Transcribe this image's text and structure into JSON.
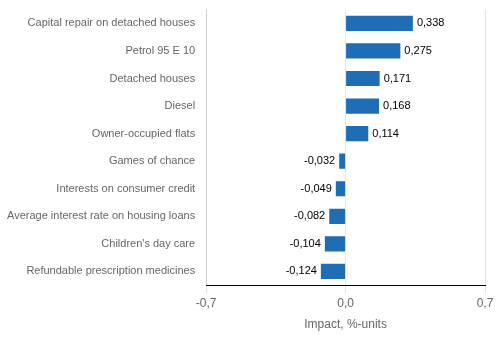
{
  "chart_data": {
    "type": "bar",
    "orientation": "horizontal",
    "categories": [
      "Refundable prescription medicines",
      "Children's day care",
      "Average interest rate on housing loans",
      "Interests on consumer credit",
      "Games of chance",
      "Owner-occupied flats",
      "Diesel",
      "Detached houses",
      "Petrol 95 E 10",
      "Capital repair on detached houses"
    ],
    "values": [
      -0.124,
      -0.104,
      -0.082,
      -0.049,
      -0.032,
      0.114,
      0.168,
      0.171,
      0.275,
      0.338
    ],
    "value_labels": [
      "-0,124",
      "-0,104",
      "-0,082",
      "-0,049",
      "-0,032",
      "0,114",
      "0,168",
      "0,171",
      "0,275",
      "0,338"
    ],
    "data_labels": true,
    "color": "#1f6eb5",
    "xlabel": "Impact, %-units",
    "xlim": [
      -0.7,
      0.7
    ],
    "xticks": [
      {
        "value": -0.7,
        "label": "-0,7"
      },
      {
        "value": 0.0,
        "label": "0,0"
      },
      {
        "value": 0.7,
        "label": "0,7"
      }
    ],
    "grid": true
  }
}
